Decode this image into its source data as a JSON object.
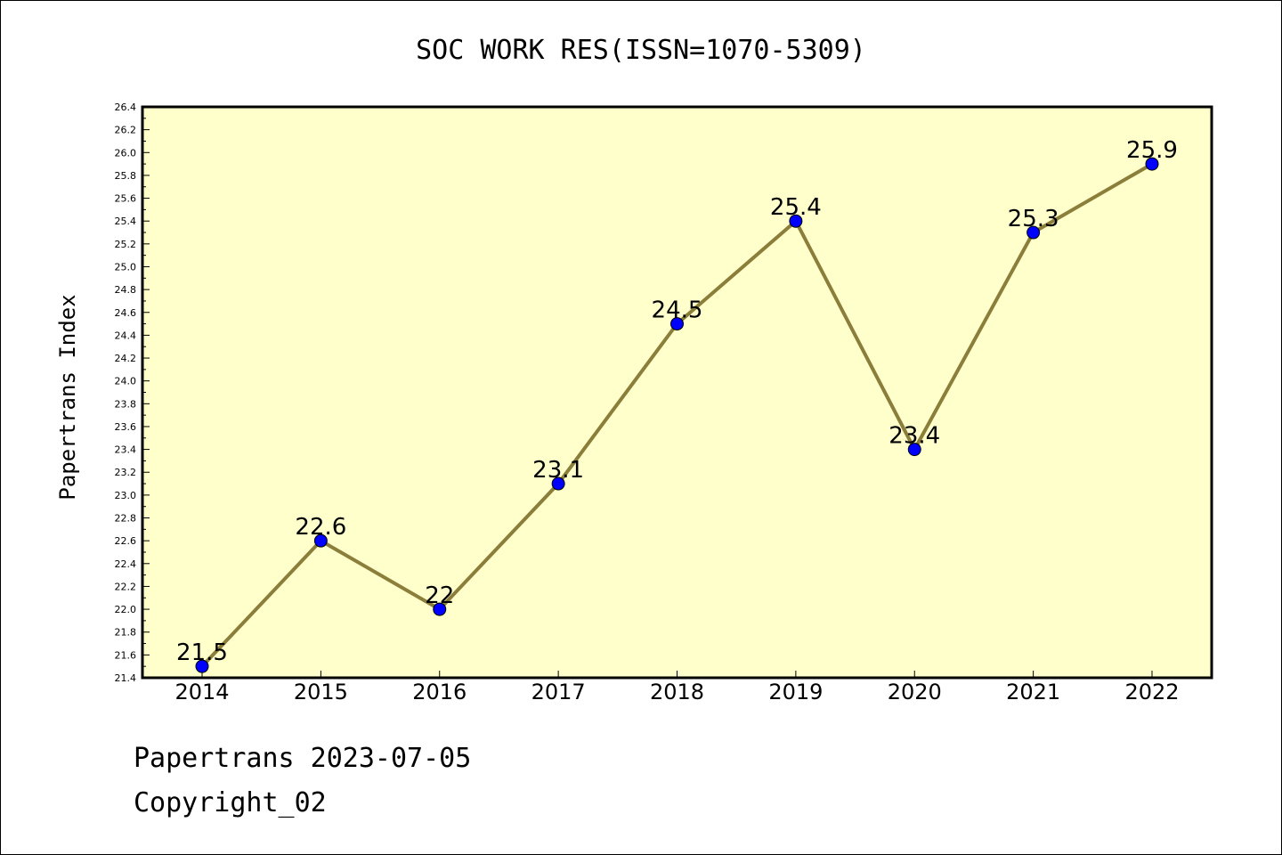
{
  "chart_data": {
    "type": "line",
    "title": "SOC WORK RES(ISSN=1070-5309)",
    "xlabel": "",
    "ylabel": "Papertrans Index",
    "categories": [
      "2014",
      "2015",
      "2016",
      "2017",
      "2018",
      "2019",
      "2020",
      "2021",
      "2022"
    ],
    "series": [
      {
        "values": [
          21.5,
          22.6,
          22.0,
          23.1,
          24.5,
          25.4,
          23.4,
          25.3,
          25.9
        ],
        "data_labels": [
          "21.5",
          "22.6",
          "22",
          "23.1",
          "24.5",
          "25.4",
          "23.4",
          "25.3",
          "25.9"
        ]
      }
    ],
    "ylim": [
      21.4,
      26.4
    ],
    "yticks": [
      "21.4",
      "21.6",
      "21.8",
      "22.0",
      "22.2",
      "22.4",
      "22.6",
      "22.8",
      "23.0",
      "23.2",
      "23.4",
      "23.6",
      "23.8",
      "24.0",
      "24.2",
      "24.4",
      "24.6",
      "24.8",
      "25.0",
      "25.2",
      "25.4",
      "25.6",
      "25.8",
      "26.0",
      "26.2",
      "26.4"
    ],
    "grid": false,
    "legend": "none",
    "colors": {
      "plot_background": "#ffffcc",
      "line": "#8b7d3a",
      "marker": "#0000ff"
    }
  },
  "footer": {
    "line1": "Papertrans 2023-07-05",
    "line2": "Copyright_02"
  }
}
